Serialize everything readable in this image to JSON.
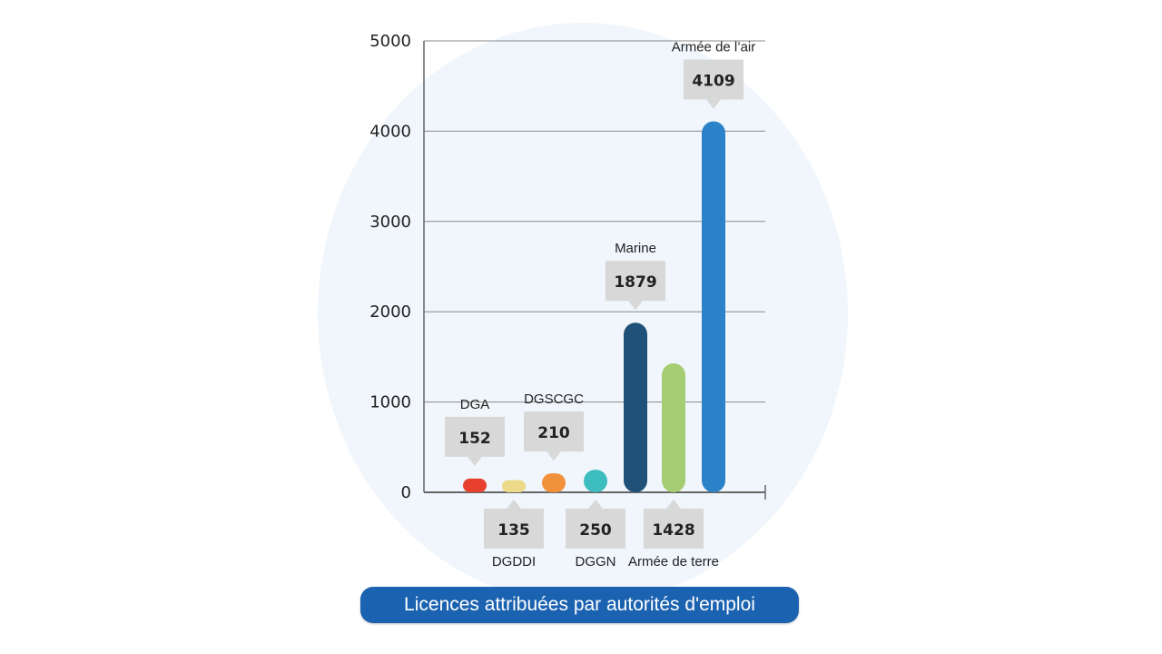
{
  "caption": "Licences attribuées par autorités d'emploi",
  "chart_data": {
    "type": "bar",
    "title": "",
    "xlabel": "",
    "ylabel": "",
    "ylim": [
      0,
      5000
    ],
    "yticks": [
      0,
      1000,
      2000,
      3000,
      4000,
      5000
    ],
    "grid": true,
    "categories": [
      "DGA",
      "DGDDI",
      "DGSCGC",
      "DGGN",
      "Marine",
      "Armée de terre",
      "Armée de l’air"
    ],
    "values": [
      152,
      135,
      210,
      250,
      1879,
      1428,
      4109
    ],
    "label_positions": [
      "above",
      "below",
      "above",
      "below",
      "above",
      "below",
      "above"
    ],
    "colors": [
      "#e8402e",
      "#ecd98a",
      "#f2913c",
      "#3dbdbf",
      "#1f5179",
      "#a5cd72",
      "#2c82c9"
    ]
  }
}
